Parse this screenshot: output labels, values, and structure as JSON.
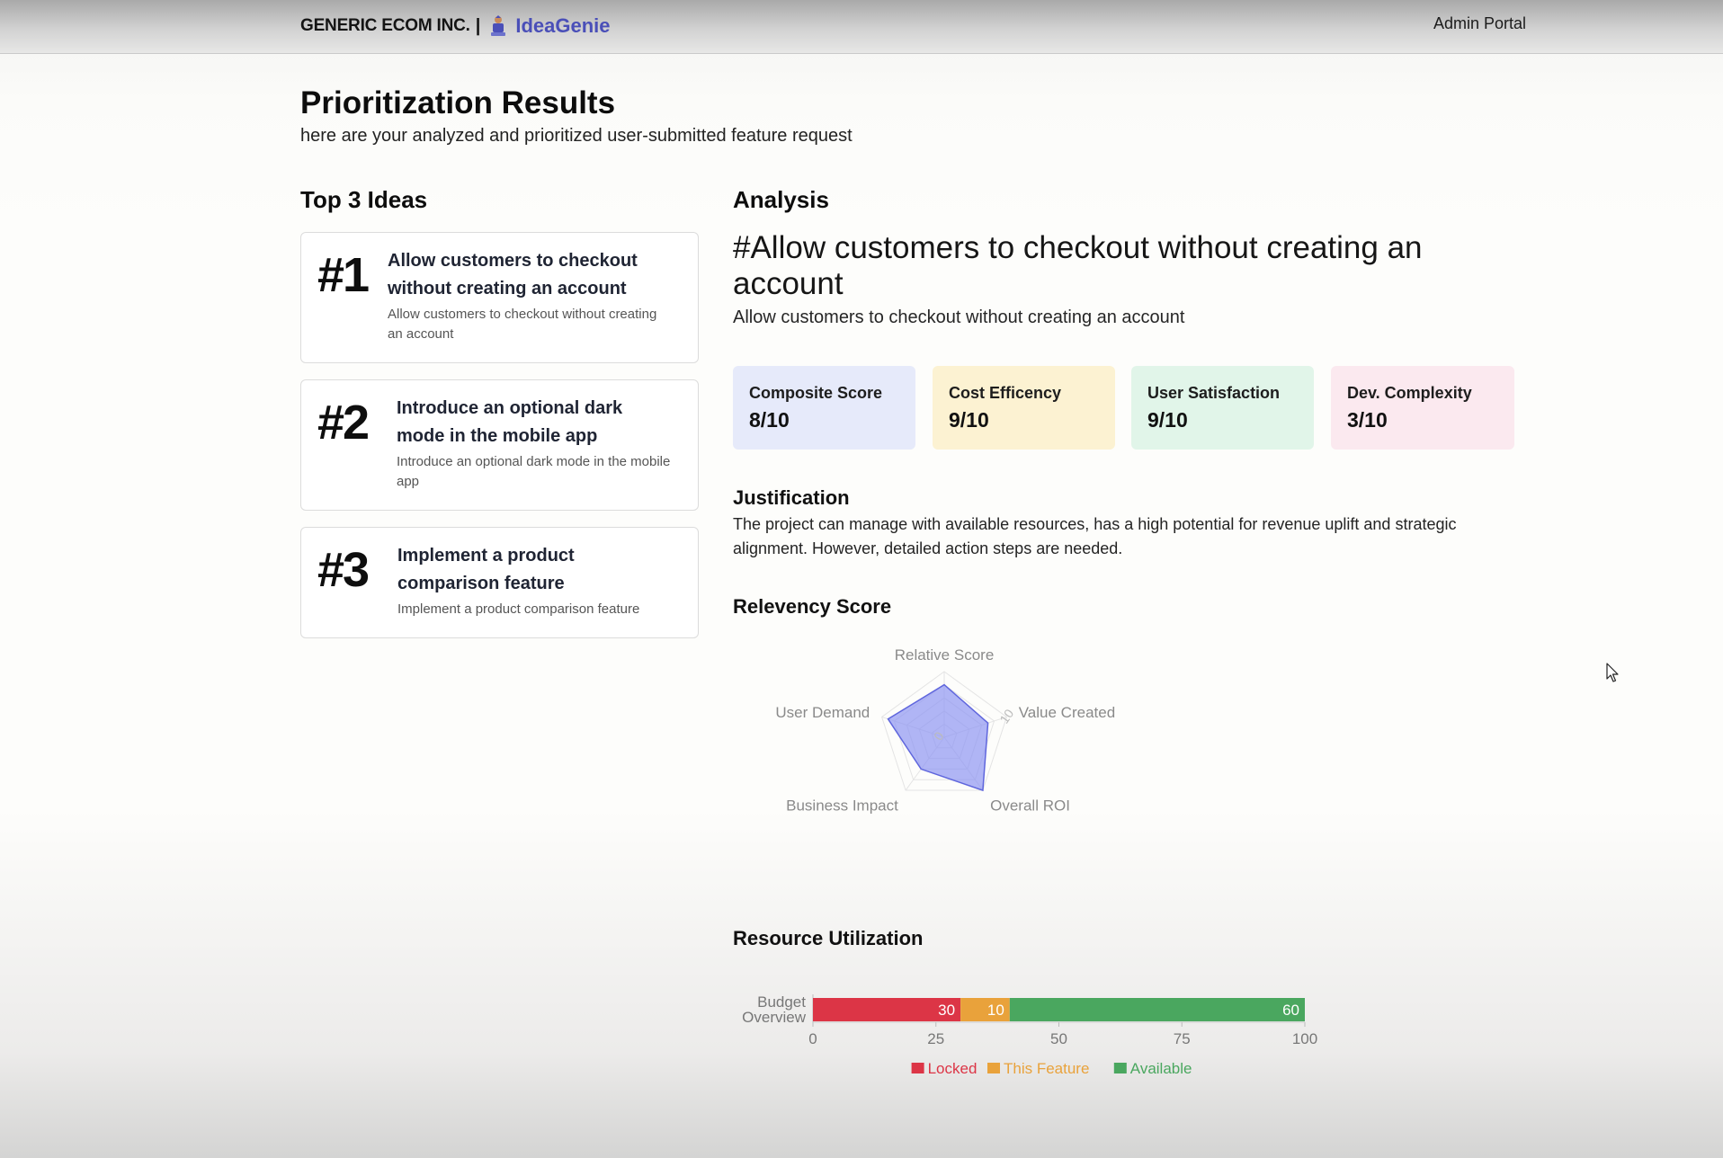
{
  "header": {
    "company": "GENERIC ECOM INC.",
    "separator": "|",
    "product": "IdeaGenie",
    "admin_label": "Admin Portal"
  },
  "page": {
    "title": "Prioritization Results",
    "subtitle": "here are your analyzed and prioritized user-submitted feature request"
  },
  "top_ideas": {
    "heading": "Top 3 Ideas",
    "items": [
      {
        "rank": "#1",
        "title": "Allow customers to checkout without creating an account",
        "description": "Allow customers to checkout without creating an account"
      },
      {
        "rank": "#2",
        "title": "Introduce an optional dark mode in the mobile app",
        "description": "Introduce an optional dark mode in the mobile app"
      },
      {
        "rank": "#3",
        "title": "Implement a product comparison feature",
        "description": "Implement a product comparison feature"
      }
    ]
  },
  "analysis": {
    "heading": "Analysis",
    "title": "#Allow customers to checkout without creating an account",
    "subtitle": "Allow customers to checkout without creating an account",
    "scores": [
      {
        "label": "Composite Score",
        "value": "8/10",
        "color": "#e6eafa"
      },
      {
        "label": "Cost Efficency",
        "value": "9/10",
        "color": "#fcf2d2"
      },
      {
        "label": "User Satisfaction",
        "value": "9/10",
        "color": "#e1f5e9"
      },
      {
        "label": "Dev. Complexity",
        "value": "3/10",
        "color": "#fbe9ef"
      }
    ],
    "justification_heading": "Justification",
    "justification": "The project can manage with available resources, has a high potential for revenue uplift and strategic alignment. However, detailed action steps are needed.",
    "relevancy_heading": "Relevency Score",
    "resource_heading": "Resource Utilization"
  },
  "chart_data": [
    {
      "type": "radar",
      "categories": [
        "Relative Score",
        "Value Created",
        "Overall ROI",
        "Business Impact",
        "User Demand"
      ],
      "values": [
        8,
        7,
        10,
        6,
        9
      ],
      "rmax": 10,
      "tick_labels": [
        "0",
        "10"
      ],
      "fill_color": "#8f96f2",
      "stroke_color": "#5f66dd"
    },
    {
      "type": "bar",
      "orientation": "horizontal",
      "stacked": true,
      "categories": [
        "Budget Overview"
      ],
      "category_lines": [
        "Budget",
        "Overview"
      ],
      "series": [
        {
          "name": "Locked",
          "values": [
            30
          ],
          "color": "#dc3546"
        },
        {
          "name": "This Feature",
          "values": [
            10
          ],
          "color": "#e9a23b"
        },
        {
          "name": "Available",
          "values": [
            60
          ],
          "color": "#4aa75f"
        }
      ],
      "xlim": [
        0,
        100
      ],
      "xticks": [
        "0",
        "25",
        "50",
        "75",
        "100"
      ],
      "legend": "bottom"
    }
  ]
}
